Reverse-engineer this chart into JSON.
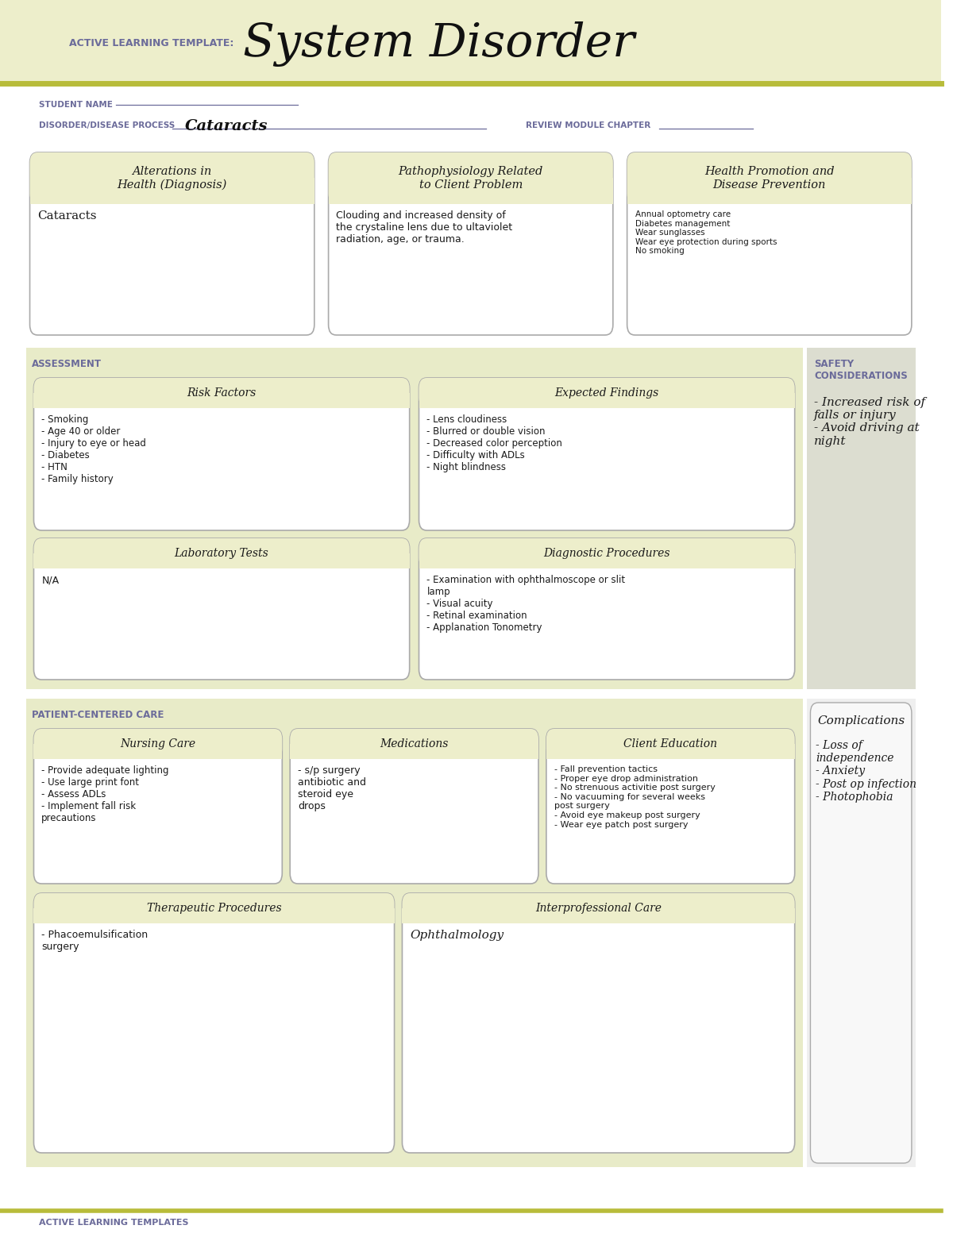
{
  "page_bg": "#ffffff",
  "header_bg": "#edeecb",
  "header_accent": "#b8bc3a",
  "box_bg": "#edeecb",
  "box_border": "#aaaaaa",
  "assessment_bg": "#e8ebc8",
  "safety_bg": "#dcddd0",
  "patient_care_bg": "#e8ebc8",
  "complications_bg": "#efefef",
  "title_color": "#1a1a1a",
  "label_color": "#6b6b9a",
  "body_color": "#1a1a1a",
  "header_label": "ACTIVE LEARNING TEMPLATE:",
  "header_title": "System Disorder",
  "student_name_label": "STUDENT NAME",
  "disorder_label": "DISORDER/DISEASE PROCESS",
  "disorder_value": "Cataracts",
  "review_label": "REVIEW MODULE CHAPTER",
  "box1_title": "Alterations in\nHealth (Diagnosis)",
  "box1_body": "Cataracts",
  "box2_title": "Pathophysiology Related\nto Client Problem",
  "box2_body": "Clouding and increased density of\nthe crystaline lens due to ultaviolet\nradiation, age, or trauma.",
  "box3_title": "Health Promotion and\nDisease Prevention",
  "box3_body": "Annual optometry care\nDiabetes management\nWear sunglasses\nWear eye protection during sports\nNo smoking",
  "assessment_label": "ASSESSMENT",
  "safety_label": "SAFETY\nCONSIDERATIONS",
  "risk_title": "Risk Factors",
  "risk_body": "- Smoking\n- Age 40 or older\n- Injury to eye or head\n- Diabetes\n- HTN\n- Family history",
  "expected_title": "Expected Findings",
  "expected_body": "- Lens cloudiness\n- Blurred or double vision\n- Decreased color perception\n- Difficulty with ADLs\n- Night blindness",
  "safety_body": "- Increased risk of\nfalls or injury\n- Avoid driving at\nnight",
  "lab_title": "Laboratory Tests",
  "lab_body": "N/A",
  "diag_title": "Diagnostic Procedures",
  "diag_body": "- Examination with ophthalmoscope or slit\nlamp\n- Visual acuity\n- Retinal examination\n- Applanation Tonometry",
  "patient_label": "PATIENT-CENTERED CARE",
  "nursing_title": "Nursing Care",
  "nursing_body": "- Provide adequate lighting\n- Use large print font\n- Assess ADLs\n- Implement fall risk\nprecautions",
  "med_title": "Medications",
  "med_body": "- s/p surgery\nantibiotic and\nsteroid eye\ndrops",
  "client_title": "Client Education",
  "client_body": "- Fall prevention tactics\n- Proper eye drop administration\n- No strenuous activitie post surgery\n- No vacuuming for several weeks\npost surgery\n- Avoid eye makeup post surgery\n- Wear eye patch post surgery",
  "complications_title": "Complications",
  "complications_body": "- Loss of\nindependence\n- Anxiety\n- Post op infection\n- Photophobia",
  "therapeutic_title": "Therapeutic Procedures",
  "therapeutic_body": "- Phacoemulsification\nsurgery",
  "interprof_title": "Interprofessional Care",
  "interprof_body": "Ophthalmology",
  "footer_text": "ACTIVE LEARNING TEMPLATES",
  "footer_line_color": "#b8bc3a"
}
